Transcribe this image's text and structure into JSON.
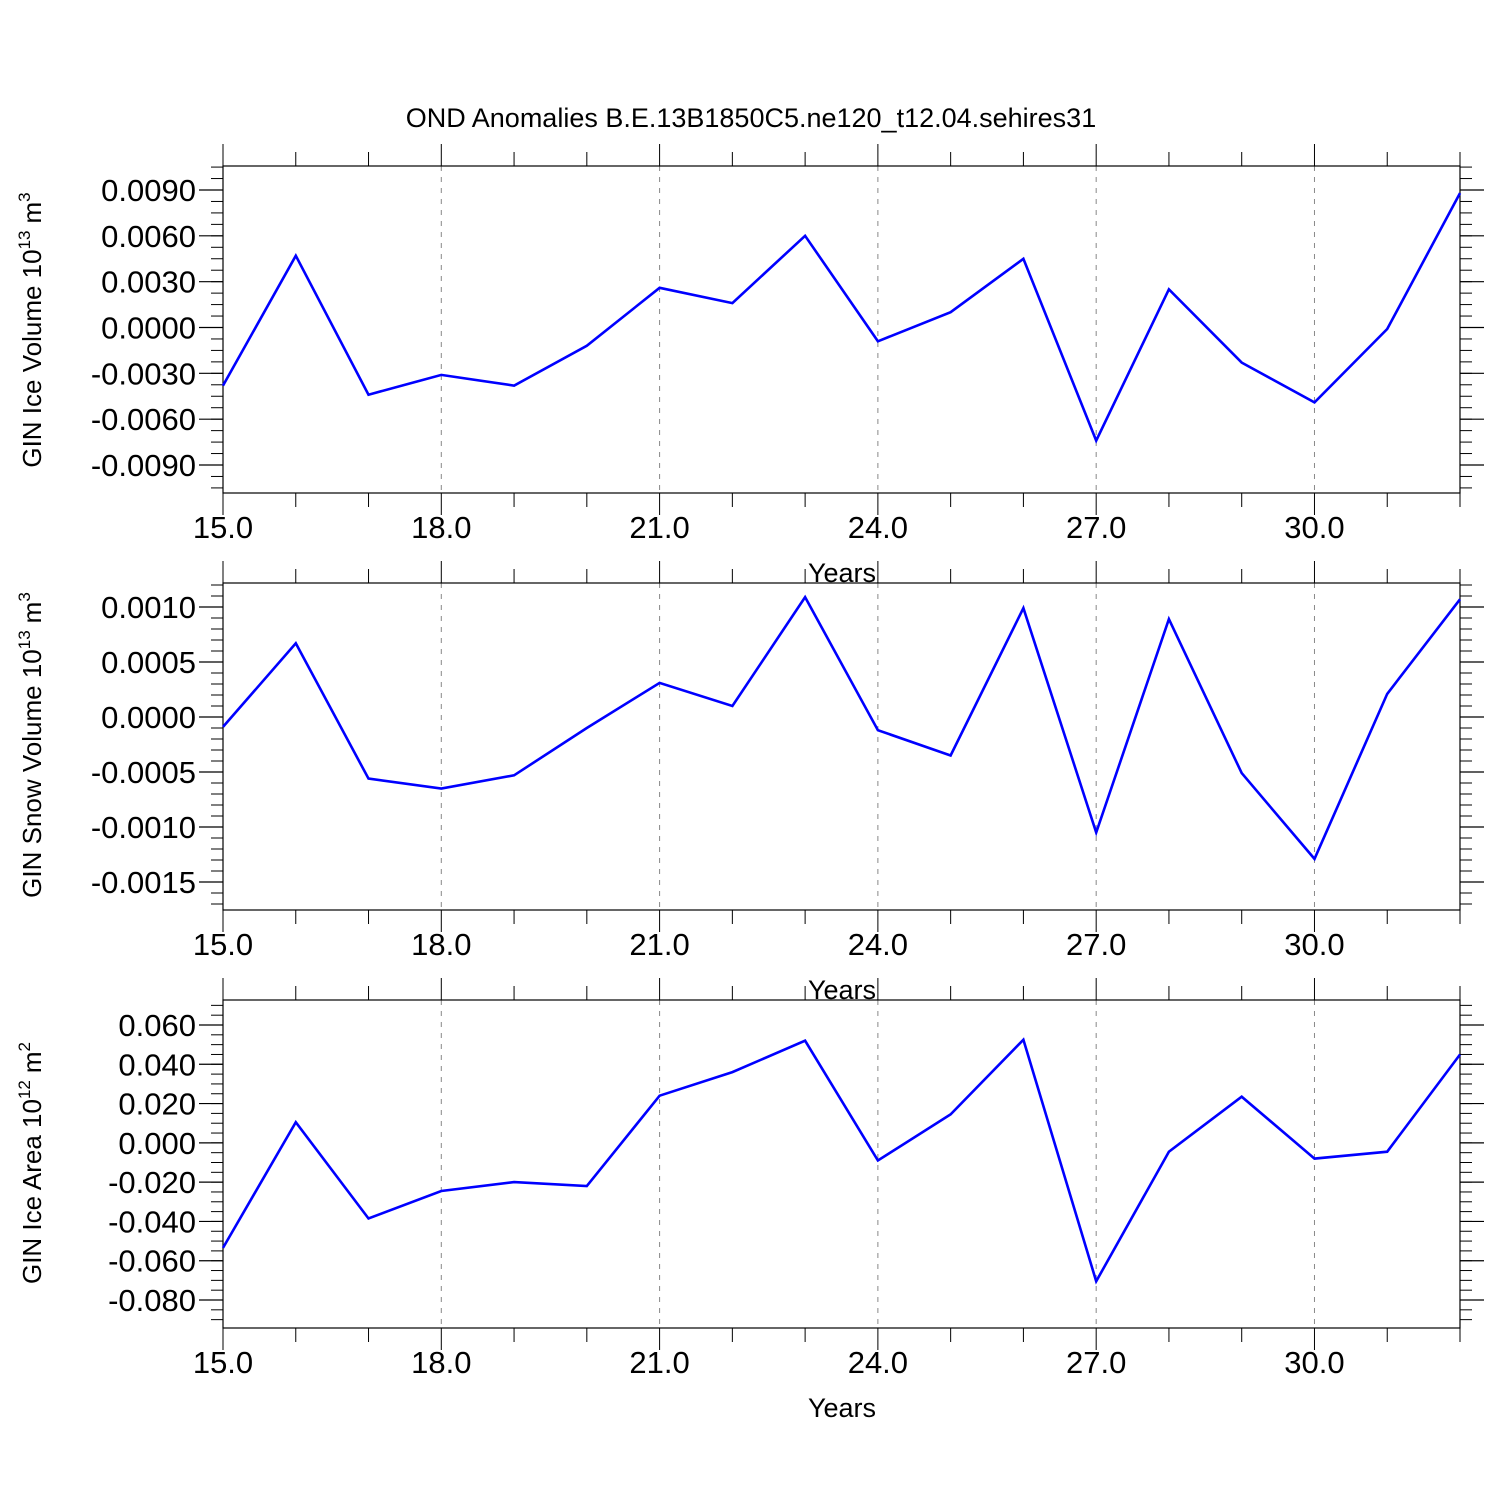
{
  "title": "OND Anomalies B.E.13B1850C5.ne120_t12.04.sehires31",
  "colors": {
    "line": "#0000ff",
    "axis": "#000000",
    "grid": "#888888"
  },
  "chart_data": [
    {
      "type": "line",
      "ylabel": "GIN Ice Volume 10",
      "ylabel_exp": "13",
      "ylabel_unit": "m",
      "ylabel_unit_exp": "3",
      "xlabel": "Years",
      "xlim": [
        15,
        32
      ],
      "ylim": [
        -0.009,
        0.009
      ],
      "xticks": [
        "15.0",
        "18.0",
        "21.0",
        "24.0",
        "27.0",
        "30.0"
      ],
      "yticks": [
        "0.0090",
        "0.0060",
        "0.0030",
        "0.0000",
        "-0.0030",
        "-0.0060",
        "-0.0090"
      ],
      "grid": "vertical dashed at major x ticks",
      "x": [
        15,
        16,
        17,
        18,
        19,
        20,
        21,
        22,
        23,
        24,
        25,
        26,
        27,
        28,
        29,
        30,
        31,
        32
      ],
      "values": [
        -0.0038,
        0.0047,
        -0.0044,
        -0.0031,
        -0.0038,
        -0.0012,
        0.0026,
        0.0016,
        0.006,
        -0.0009,
        0.001,
        0.0045,
        -0.0074,
        0.0025,
        -0.0023,
        -0.0049,
        -0.0001,
        0.0088
      ]
    },
    {
      "type": "line",
      "ylabel": "GIN Snow Volume 10",
      "ylabel_exp": "13",
      "ylabel_unit": "m",
      "ylabel_unit_exp": "3",
      "xlabel": "Years",
      "xlim": [
        15,
        32
      ],
      "ylim": [
        -0.0016,
        0.0012
      ],
      "xticks": [
        "15.0",
        "18.0",
        "21.0",
        "24.0",
        "27.0",
        "30.0"
      ],
      "yticks": [
        "0.0010",
        "0.0005",
        "0.0000",
        "-0.0005",
        "-0.0010",
        "-0.0015"
      ],
      "grid": "vertical dashed at major x ticks",
      "x": [
        15,
        16,
        17,
        18,
        19,
        20,
        21,
        22,
        23,
        24,
        25,
        26,
        27,
        28,
        29,
        30,
        31,
        32
      ],
      "values": [
        -9e-05,
        0.00067,
        -0.00056,
        -0.00065,
        -0.00053,
        -0.0001,
        0.00031,
        0.0001,
        0.00109,
        -0.00012,
        -0.00035,
        0.00099,
        -0.00105,
        0.00089,
        -0.00051,
        -0.00129,
        0.00021,
        0.00107
      ]
    },
    {
      "type": "line",
      "ylabel": "GIN Ice Area 10",
      "ylabel_exp": "12",
      "ylabel_unit": "m",
      "ylabel_unit_exp": "2",
      "xlabel": "Years",
      "xlim": [
        15,
        32
      ],
      "ylim": [
        -0.08,
        0.06
      ],
      "xticks": [
        "15.0",
        "18.0",
        "21.0",
        "24.0",
        "27.0",
        "30.0"
      ],
      "yticks": [
        "0.060",
        "0.040",
        "0.020",
        "0.000",
        "-0.020",
        "-0.040",
        "-0.060",
        "-0.080"
      ],
      "grid": "vertical dashed at major x ticks",
      "x": [
        15,
        16,
        17,
        18,
        19,
        20,
        21,
        22,
        23,
        24,
        25,
        26,
        27,
        28,
        29,
        30,
        31,
        32
      ],
      "values": [
        -0.0535,
        0.0105,
        -0.0385,
        -0.0245,
        -0.02,
        -0.022,
        0.024,
        0.036,
        0.052,
        -0.009,
        0.0145,
        0.0525,
        -0.0705,
        -0.0045,
        0.0235,
        -0.008,
        -0.0045,
        0.045
      ]
    }
  ]
}
